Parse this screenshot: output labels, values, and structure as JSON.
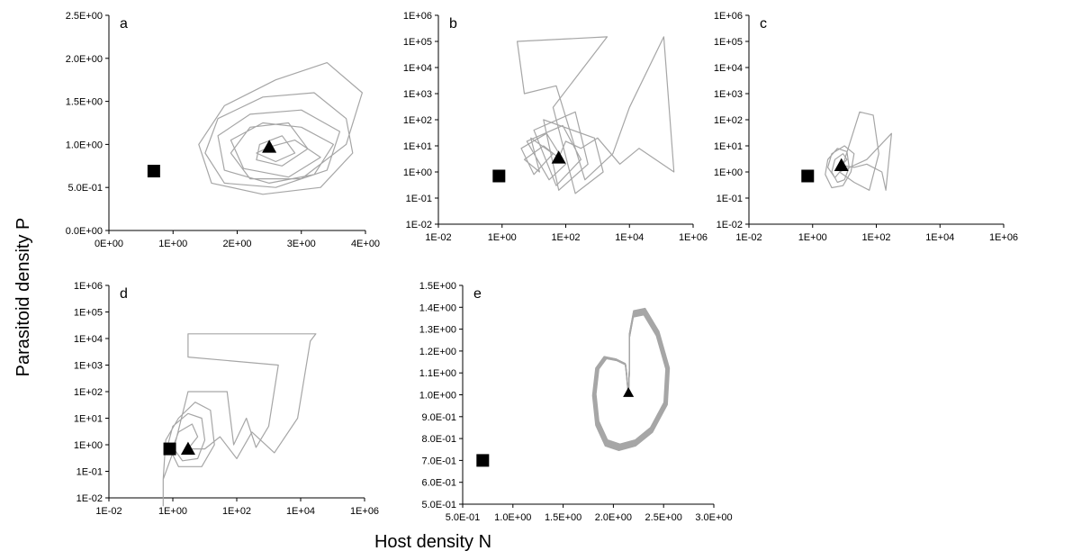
{
  "ylabel": "Parasitoid density P",
  "xlabel": "Host density N",
  "chart_data": [
    {
      "type": "line",
      "panel": "a",
      "xscale": "linear",
      "yscale": "linear",
      "xlim": [
        0,
        4
      ],
      "ylim": [
        0,
        2.5
      ],
      "xticks": [
        0,
        1,
        2,
        3,
        4
      ],
      "xtick_labels": [
        "0E+00",
        "1E+00",
        "2E+00",
        "3E+00",
        "4E+00"
      ],
      "yticks": [
        0,
        0.5,
        1.0,
        1.5,
        2.0,
        2.5
      ],
      "ytick_labels": [
        "0.0E+00",
        "5.0E-01",
        "1.0E+00",
        "1.5E+00",
        "2.0E+00",
        "2.5E+00"
      ],
      "square": {
        "x": 0.7,
        "y": 0.69
      },
      "triangle": {
        "x": 2.5,
        "y": 0.97
      },
      "trajectory": [
        [
          2.5,
          0.97
        ],
        [
          2.9,
          1.05
        ],
        [
          3.3,
          0.85
        ],
        [
          2.8,
          0.62
        ],
        [
          2.1,
          0.72
        ],
        [
          1.9,
          1.05
        ],
        [
          2.4,
          1.25
        ],
        [
          3.0,
          1.2
        ],
        [
          3.5,
          1.0
        ],
        [
          3.2,
          0.65
        ],
        [
          2.5,
          0.55
        ],
        [
          1.8,
          0.7
        ],
        [
          1.7,
          1.1
        ],
        [
          2.2,
          1.35
        ],
        [
          3.0,
          1.4
        ],
        [
          3.6,
          1.15
        ],
        [
          3.4,
          0.7
        ],
        [
          2.6,
          0.5
        ],
        [
          1.8,
          0.55
        ],
        [
          1.5,
          0.9
        ],
        [
          1.7,
          1.3
        ],
        [
          2.4,
          1.55
        ],
        [
          3.2,
          1.6
        ],
        [
          3.7,
          1.3
        ],
        [
          3.8,
          0.9
        ],
        [
          3.3,
          0.5
        ],
        [
          2.4,
          0.42
        ],
        [
          1.6,
          0.55
        ],
        [
          1.4,
          1.0
        ],
        [
          1.8,
          1.45
        ],
        [
          2.6,
          1.75
        ],
        [
          3.4,
          1.95
        ],
        [
          3.95,
          1.6
        ],
        [
          3.7,
          1.0
        ],
        [
          3.0,
          0.6
        ],
        [
          2.2,
          0.6
        ],
        [
          1.9,
          0.9
        ],
        [
          2.2,
          1.2
        ],
        [
          2.8,
          1.25
        ],
        [
          3.1,
          0.95
        ],
        [
          2.7,
          0.75
        ],
        [
          2.3,
          0.82
        ],
        [
          2.35,
          1.0
        ],
        [
          2.7,
          1.1
        ],
        [
          2.9,
          0.9
        ],
        [
          2.6,
          0.8
        ],
        [
          2.3,
          0.9
        ],
        [
          2.5,
          0.97
        ]
      ]
    },
    {
      "type": "line",
      "panel": "b",
      "xscale": "log",
      "yscale": "log",
      "xlim": [
        0.01,
        1000000
      ],
      "ylim": [
        0.01,
        1000000
      ],
      "xticks": [
        0.01,
        1,
        100,
        10000,
        1000000
      ],
      "xtick_labels": [
        "1E-02",
        "1E+00",
        "1E+02",
        "1E+04",
        "1E+06"
      ],
      "yticks": [
        0.01,
        0.1,
        1,
        10,
        100,
        1000,
        10000,
        100000,
        1000000
      ],
      "ytick_labels": [
        "1E-02",
        "1E-01",
        "1E+00",
        "1E+01",
        "1E+02",
        "1E+03",
        "1E+04",
        "1E+05",
        "1E+06"
      ],
      "square": {
        "x": 0.8,
        "y": 0.7
      },
      "triangle": {
        "x": 60,
        "y": 3.5
      },
      "trajectory": [
        [
          60,
          3.5
        ],
        [
          20,
          10
        ],
        [
          5,
          3
        ],
        [
          15,
          1
        ],
        [
          8,
          20
        ],
        [
          40,
          5
        ],
        [
          10,
          0.8
        ],
        [
          4,
          8
        ],
        [
          25,
          30
        ],
        [
          100,
          2
        ],
        [
          30,
          0.5
        ],
        [
          6,
          15
        ],
        [
          80,
          60
        ],
        [
          300,
          3
        ],
        [
          50,
          0.3
        ],
        [
          10,
          40
        ],
        [
          200,
          200
        ],
        [
          500,
          2
        ],
        [
          60,
          0.2
        ],
        [
          20,
          100
        ],
        [
          800,
          20
        ],
        [
          1500,
          1
        ],
        [
          200,
          0.15
        ],
        [
          40,
          300
        ],
        [
          2000,
          150000
        ],
        [
          3,
          100000
        ],
        [
          5,
          1000
        ],
        [
          50,
          2000
        ],
        [
          400,
          0.5
        ],
        [
          3000,
          5
        ],
        [
          10000,
          300
        ],
        [
          120000,
          150000
        ],
        [
          250000,
          1
        ],
        [
          20000,
          8
        ],
        [
          5000,
          2
        ],
        [
          1000,
          20
        ],
        [
          300,
          8
        ],
        [
          100,
          15
        ],
        [
          60,
          3.5
        ]
      ]
    },
    {
      "type": "line",
      "panel": "c",
      "xscale": "log",
      "yscale": "log",
      "xlim": [
        0.01,
        1000000
      ],
      "ylim": [
        0.01,
        1000000
      ],
      "xticks": [
        0.01,
        1,
        100,
        10000,
        1000000
      ],
      "xtick_labels": [
        "1E-02",
        "1E+00",
        "1E+02",
        "1E+04",
        "1E+06"
      ],
      "yticks": [
        0.01,
        0.1,
        1,
        10,
        100,
        1000,
        10000,
        100000,
        1000000
      ],
      "ytick_labels": [
        "1E-02",
        "1E-01",
        "1E+00",
        "1E+01",
        "1E+02",
        "1E+03",
        "1E+04",
        "1E+05",
        "1E+06"
      ],
      "square": {
        "x": 0.7,
        "y": 0.7
      },
      "triangle": {
        "x": 8,
        "y": 1.8
      },
      "trajectory": [
        [
          8,
          1.8
        ],
        [
          12,
          3
        ],
        [
          9,
          5
        ],
        [
          5,
          3
        ],
        [
          4,
          1
        ],
        [
          6,
          0.4
        ],
        [
          10,
          0.5
        ],
        [
          14,
          1.5
        ],
        [
          12,
          6
        ],
        [
          6,
          8
        ],
        [
          3,
          3
        ],
        [
          2.5,
          0.8
        ],
        [
          4,
          0.25
        ],
        [
          9,
          0.3
        ],
        [
          16,
          1
        ],
        [
          20,
          5
        ],
        [
          10,
          10
        ],
        [
          4,
          5
        ],
        [
          3,
          1.5
        ],
        [
          5,
          0.6
        ],
        [
          8,
          1.2
        ],
        [
          30,
          200
        ],
        [
          80,
          150
        ],
        [
          120,
          5
        ],
        [
          60,
          0.2
        ],
        [
          20,
          0.4
        ],
        [
          7,
          1
        ],
        [
          50,
          3
        ],
        [
          300,
          30
        ],
        [
          200,
          0.2
        ],
        [
          150,
          1
        ],
        [
          50,
          2
        ],
        [
          20,
          1.5
        ],
        [
          8,
          1.8
        ]
      ]
    },
    {
      "type": "line",
      "panel": "d",
      "xscale": "log",
      "yscale": "log",
      "xlim": [
        0.01,
        1000000
      ],
      "ylim": [
        0.01,
        1000000
      ],
      "xticks": [
        0.01,
        1,
        100,
        10000,
        1000000
      ],
      "xtick_labels": [
        "1E-02",
        "1E+00",
        "1E+02",
        "1E+04",
        "1E+06"
      ],
      "yticks": [
        0.01,
        0.1,
        1,
        10,
        100,
        1000,
        10000,
        100000,
        1000000
      ],
      "ytick_labels": [
        "1E-02",
        "1E-01",
        "1E+00",
        "1E+01",
        "1E+02",
        "1E+03",
        "1E+04",
        "1E+05",
        "1E+06"
      ],
      "square": {
        "x": 0.8,
        "y": 0.7
      },
      "triangle": {
        "x": 3,
        "y": 0.7
      },
      "trajectory": [
        [
          3,
          0.7
        ],
        [
          6,
          2
        ],
        [
          4,
          6
        ],
        [
          1.5,
          3
        ],
        [
          1,
          0.8
        ],
        [
          2,
          0.25
        ],
        [
          6,
          0.3
        ],
        [
          10,
          1.5
        ],
        [
          8,
          10
        ],
        [
          3,
          15
        ],
        [
          1,
          5
        ],
        [
          0.7,
          1
        ],
        [
          1.5,
          0.15
        ],
        [
          8,
          0.15
        ],
        [
          20,
          1
        ],
        [
          15,
          20
        ],
        [
          5,
          40
        ],
        [
          1.5,
          10
        ],
        [
          0.6,
          1.5
        ],
        [
          0.5,
          0.05
        ],
        [
          0.5,
          0.005
        ],
        [
          0.5,
          0.05
        ],
        [
          1,
          0.5
        ],
        [
          3,
          100
        ],
        [
          50,
          100
        ],
        [
          80,
          1
        ],
        [
          200,
          10
        ],
        [
          400,
          0.8
        ],
        [
          1000,
          5
        ],
        [
          2000,
          1000
        ],
        [
          3,
          2000
        ],
        [
          3,
          15000
        ],
        [
          30000,
          15000
        ],
        [
          20000,
          8000
        ],
        [
          8000,
          10
        ],
        [
          1500,
          0.5
        ],
        [
          300,
          3
        ],
        [
          100,
          0.3
        ],
        [
          30,
          2
        ],
        [
          10,
          0.7
        ],
        [
          3,
          0.7
        ]
      ]
    },
    {
      "type": "line",
      "panel": "e",
      "xscale": "linear",
      "yscale": "linear",
      "xlim": [
        0.5,
        3.0
      ],
      "ylim": [
        0.5,
        1.5
      ],
      "xticks": [
        0.5,
        1.0,
        1.5,
        2.0,
        2.5,
        3.0
      ],
      "xtick_labels": [
        "5.0E-01",
        "1.0E+00",
        "1.5E+00",
        "2.0E+00",
        "2.5E+00",
        "3.0E+00"
      ],
      "yticks": [
        0.5,
        0.6,
        0.7,
        0.8,
        0.9,
        1.0,
        1.1,
        1.2,
        1.3,
        1.4,
        1.5
      ],
      "ytick_labels": [
        "5.0E-01",
        "6.0E-01",
        "7.0E-01",
        "8.0E-01",
        "9.0E-01",
        "1.0E+00",
        "1.1E+00",
        "1.2E+00",
        "1.3E+00",
        "1.4E+00",
        "1.5E+00"
      ],
      "square": {
        "x": 0.7,
        "y": 0.7
      },
      "triangle": {
        "x": 2.15,
        "y": 1.01
      },
      "limit_cycle": [
        [
          2.15,
          1.0
        ],
        [
          2.13,
          1.1
        ],
        [
          2.12,
          1.14
        ],
        [
          2.03,
          1.16
        ],
        [
          1.92,
          1.17
        ],
        [
          1.84,
          1.12
        ],
        [
          1.81,
          1.0
        ],
        [
          1.84,
          0.87
        ],
        [
          1.93,
          0.78
        ],
        [
          2.06,
          0.76
        ],
        [
          2.22,
          0.78
        ],
        [
          2.38,
          0.84
        ],
        [
          2.52,
          0.96
        ],
        [
          2.54,
          1.12
        ],
        [
          2.44,
          1.28
        ],
        [
          2.31,
          1.38
        ],
        [
          2.2,
          1.37
        ],
        [
          2.16,
          1.27
        ],
        [
          2.16,
          1.12
        ],
        [
          2.15,
          1.0
        ]
      ],
      "limit_cycle_loops": 9
    }
  ]
}
